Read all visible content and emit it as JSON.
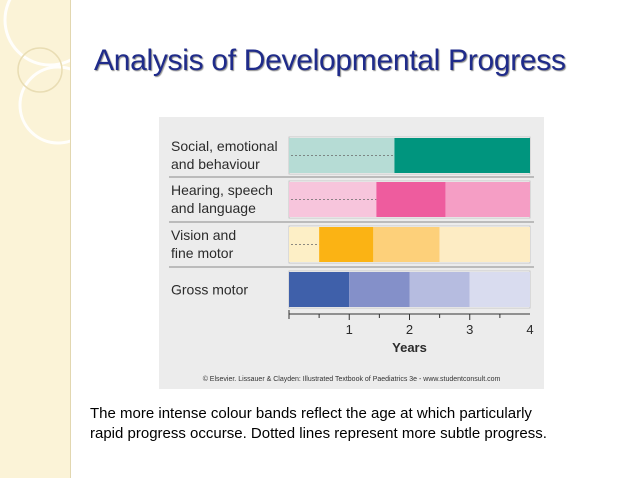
{
  "slide": {
    "title": "Analysis of Developmental Progress",
    "credit": "© Elsevier. Lissauer & Clayden: Illustrated Textbook of Paediatrics 3e - www.studentconsult.com",
    "caption_line1": "The more intense colour bands reflect  the age at which particularly",
    "caption_line2": "rapid progress occurse. Dotted lines represent more subtle progress."
  },
  "chart_data": {
    "type": "bar",
    "orientation": "horizontal",
    "xlabel": "Years",
    "xlim": [
      0,
      4
    ],
    "xticks": [
      1,
      2,
      3,
      4
    ],
    "grid": false,
    "rows": [
      {
        "label_lines": [
          "Social, emotional",
          "and behaviour"
        ],
        "segments": [
          {
            "start": 0,
            "end": 1.75,
            "color": "#b6dcd5",
            "dotted": true
          },
          {
            "start": 1.75,
            "end": 4,
            "color": "#00957e",
            "dotted": false
          }
        ]
      },
      {
        "label_lines": [
          "Hearing, speech",
          "and language"
        ],
        "segments": [
          {
            "start": 0,
            "end": 1.45,
            "color": "#f7c5dc",
            "dotted": true
          },
          {
            "start": 1.45,
            "end": 2.6,
            "color": "#ee5c9e",
            "dotted": false
          },
          {
            "start": 2.6,
            "end": 4,
            "color": "#f59ec5",
            "dotted": false
          }
        ]
      },
      {
        "label_lines": [
          "Vision and",
          "fine motor"
        ],
        "segments": [
          {
            "start": 0,
            "end": 0.5,
            "color": "#fdefc6",
            "dotted": true
          },
          {
            "start": 0.5,
            "end": 1.4,
            "color": "#fbb314",
            "dotted": false
          },
          {
            "start": 1.4,
            "end": 2.5,
            "color": "#fdd07a",
            "dotted": false
          },
          {
            "start": 2.5,
            "end": 4,
            "color": "#fdecc4",
            "dotted": false
          }
        ]
      },
      {
        "label_lines": [
          "Gross motor"
        ],
        "segments": [
          {
            "start": 0,
            "end": 1,
            "color": "#3f60aa",
            "dotted": false
          },
          {
            "start": 1,
            "end": 2,
            "color": "#8490c9",
            "dotted": false
          },
          {
            "start": 2,
            "end": 3,
            "color": "#b6bce0",
            "dotted": false
          },
          {
            "start": 3,
            "end": 4,
            "color": "#d9dcef",
            "dotted": false
          }
        ]
      }
    ]
  }
}
